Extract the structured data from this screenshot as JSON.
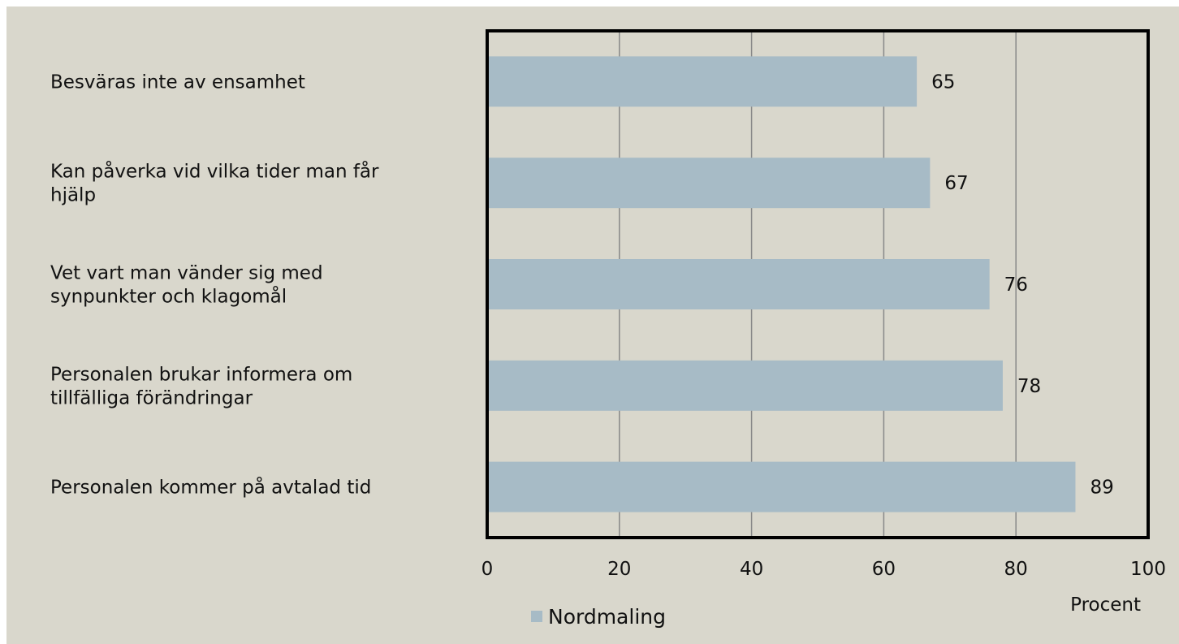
{
  "chart_data": {
    "type": "bar",
    "orientation": "horizontal",
    "categories": [
      "Besväras inte av ensamhet",
      "Kan påverka vid vilka tider man får hjälp",
      "Vet vart man vänder sig med synpunkter och klagomål",
      "Personalen brukar informera om tillfälliga förändringar",
      "Personalen kommer på avtalad tid"
    ],
    "category_lines": [
      [
        "Besväras inte av ensamhet"
      ],
      [
        "Kan påverka vid vilka tider man får",
        "hjälp"
      ],
      [
        "Vet vart man vänder sig med",
        "synpunkter och klagomål"
      ],
      [
        "Personalen brukar informera om",
        "tillfälliga förändringar"
      ],
      [
        "Personalen kommer på avtalad tid"
      ]
    ],
    "series": [
      {
        "name": "Nordmaling",
        "values": [
          65,
          67,
          76,
          78,
          89
        ],
        "color": "#a7bbc6"
      }
    ],
    "value_labels": [
      "65",
      "67",
      "76",
      "78",
      "89"
    ],
    "xlabel": "Procent",
    "ylabel": "",
    "title": "",
    "xlim": [
      0,
      100
    ],
    "xticks": [
      0,
      20,
      40,
      60,
      80,
      100
    ],
    "xtick_labels": [
      "0",
      "20",
      "40",
      "60",
      "80",
      "100"
    ],
    "grid": "vertical",
    "grid_color": "#888888",
    "background_color": "#d9d7cc",
    "legend_position": "bottom"
  }
}
